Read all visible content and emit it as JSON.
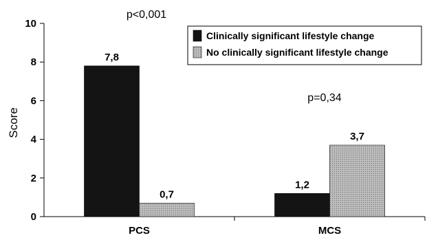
{
  "chart_data": {
    "type": "bar",
    "categories": [
      "PCS",
      "MCS"
    ],
    "series": [
      {
        "name": "Clinically significant lifestyle change",
        "values": [
          7.8,
          1.2
        ],
        "labels": [
          "7,8",
          "1,2"
        ],
        "color": "#141414"
      },
      {
        "name": "No clinically significant lifestyle change",
        "values": [
          0.7,
          3.7
        ],
        "labels": [
          "0,7",
          "3,7"
        ],
        "color": "#a8a8a8"
      }
    ],
    "title": "",
    "xlabel": "",
    "ylabel": "Score",
    "ylim": [
      0,
      10
    ],
    "yticks": [
      0,
      2,
      4,
      6,
      8,
      10
    ],
    "ytick_labels": [
      "0",
      "2",
      "4",
      "6",
      "8",
      "10"
    ],
    "annotations": [
      {
        "text": "p<0,001",
        "category": "PCS"
      },
      {
        "text": "p=0,34",
        "category": "MCS"
      }
    ],
    "legend": "top-right",
    "grid": false
  }
}
